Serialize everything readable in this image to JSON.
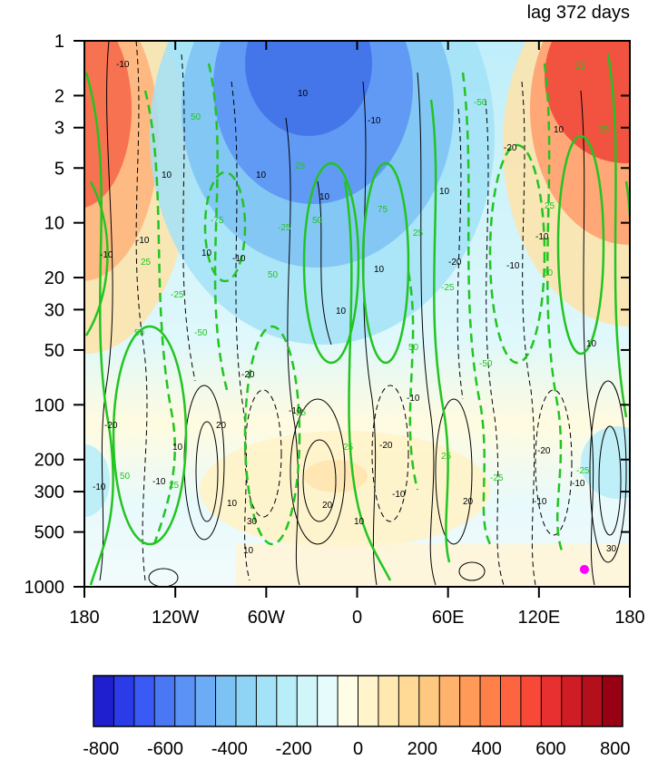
{
  "chart_data": {
    "type": "heatmap",
    "title_right": "lag 372 days",
    "x_ticks": [
      {
        "value": -180,
        "label": "180"
      },
      {
        "value": -120,
        "label": "120W"
      },
      {
        "value": -60,
        "label": "60W"
      },
      {
        "value": 0,
        "label": "0"
      },
      {
        "value": 60,
        "label": "60E"
      },
      {
        "value": 120,
        "label": "120E"
      },
      {
        "value": 180,
        "label": "180"
      }
    ],
    "y_scale": "log",
    "y_reversed": true,
    "y_range": [
      1000,
      1
    ],
    "y_ticks": [
      1,
      2,
      3,
      5,
      10,
      20,
      30,
      50,
      100,
      200,
      300,
      500,
      1000
    ],
    "colorbar": {
      "min": -800,
      "max": 800,
      "step": 50,
      "tick_labels": [
        {
          "value": -800,
          "label": "-800"
        },
        {
          "value": -600,
          "label": "-600"
        },
        {
          "value": -400,
          "label": "-400"
        },
        {
          "value": -200,
          "label": "-200"
        },
        {
          "value": 0,
          "label": "0"
        },
        {
          "value": 200,
          "label": "200"
        },
        {
          "value": 400,
          "label": "400"
        },
        {
          "value": 600,
          "label": "600"
        },
        {
          "value": 800,
          "label": "800"
        }
      ],
      "colors": [
        "#1f1fd0",
        "#2b3be8",
        "#3a5af5",
        "#4a78f5",
        "#5a92f5",
        "#6cabf5",
        "#7dc2f5",
        "#8fd4f5",
        "#a3e2f7",
        "#b9edf8",
        "#d0f6fa",
        "#e6fcfc",
        "#fffde6",
        "#fff4cc",
        "#ffe9b0",
        "#ffda96",
        "#ffc880",
        "#ffb26c",
        "#ff9a58",
        "#ff8048",
        "#ff6440",
        "#f84838",
        "#e83030",
        "#d01c24",
        "#b4101c",
        "#980014"
      ]
    },
    "contour_labels_black": [
      "-10",
      "10",
      "-20",
      "20",
      "30"
    ],
    "contour_labels_green": [
      "25",
      "50",
      "75",
      "-25",
      "-50",
      "-75"
    ],
    "marker": {
      "lon": 150,
      "p": 850,
      "color": "#ff00ff"
    }
  }
}
